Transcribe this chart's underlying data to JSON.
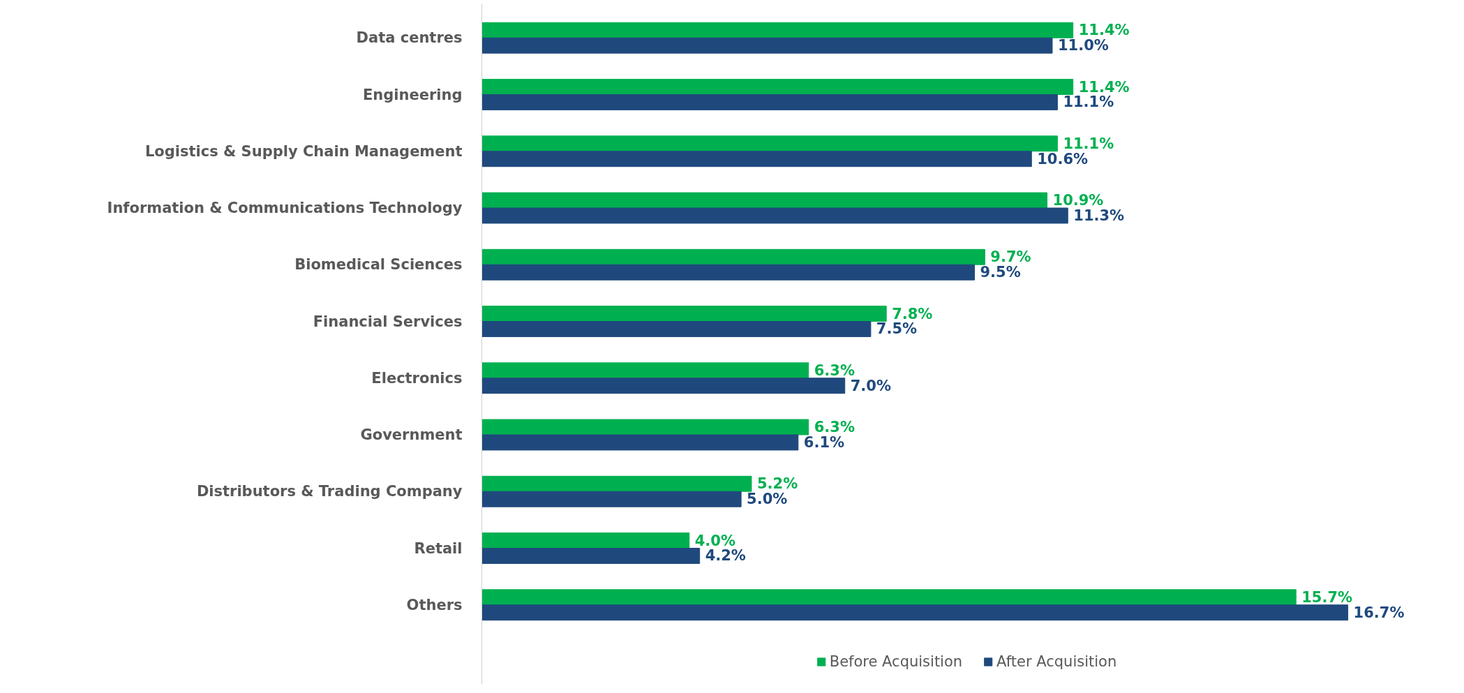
{
  "chart_data": {
    "type": "bar",
    "orientation": "horizontal",
    "categories": [
      "Data centres",
      "Engineering",
      "Logistics & Supply Chain Management",
      "Information & Communications Technology",
      "Biomedical Sciences",
      "Financial Services",
      "Electronics",
      "Government",
      "Distributors & Trading Company",
      "Retail",
      "Others"
    ],
    "series": [
      {
        "name": "Before Acquisition",
        "color": "#00b050",
        "values": [
          11.4,
          11.4,
          11.1,
          10.9,
          9.7,
          7.8,
          6.3,
          6.3,
          5.2,
          4.0,
          15.7
        ],
        "value_labels": [
          "11.4%",
          "11.4%",
          "11.1%",
          "10.9%",
          "9.7%",
          "7.8%",
          "6.3%",
          "6.3%",
          "5.2%",
          "4.0%",
          "15.7%"
        ]
      },
      {
        "name": "After Acquisition",
        "color": "#1f497d",
        "values": [
          11.0,
          11.1,
          10.6,
          11.3,
          9.5,
          7.5,
          7.0,
          6.1,
          5.0,
          4.2,
          16.7
        ],
        "value_labels": [
          "11.0%",
          "11.1%",
          "10.6%",
          "11.3%",
          "9.5%",
          "7.5%",
          "7.0%",
          "6.1%",
          "5.0%",
          "4.2%",
          "16.7%"
        ]
      }
    ],
    "legend": "bottom"
  }
}
